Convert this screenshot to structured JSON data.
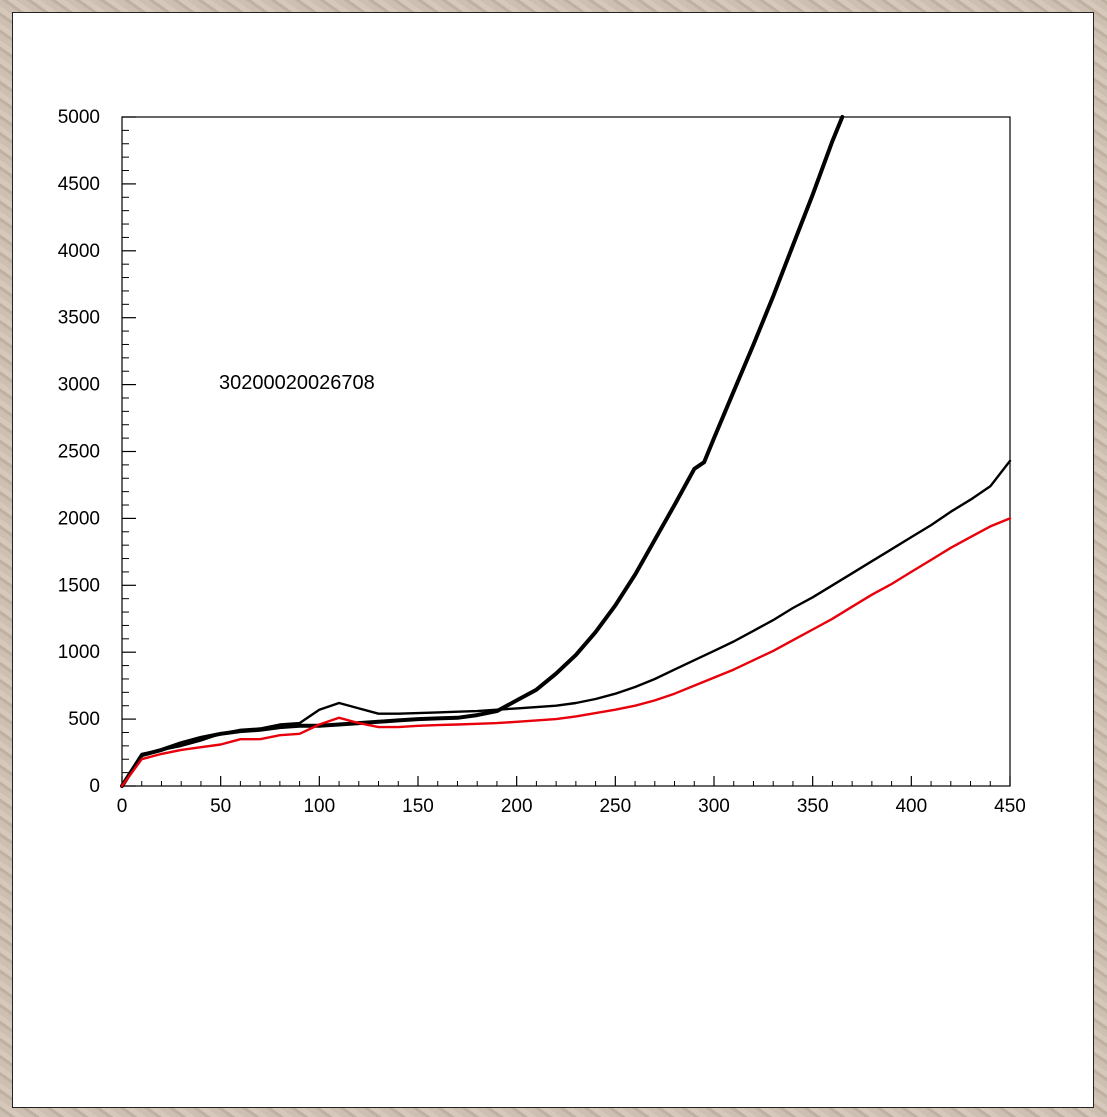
{
  "chart_data": {
    "type": "line",
    "title": "",
    "xlabel": "",
    "ylabel": "",
    "xlim": [
      0,
      450
    ],
    "ylim": [
      0,
      5000
    ],
    "grid": false,
    "xticks": [
      0,
      50,
      100,
      150,
      200,
      250,
      300,
      350,
      400,
      450
    ],
    "yticks": [
      0,
      500,
      1000,
      1500,
      2000,
      2500,
      3000,
      3500,
      4000,
      4500,
      5000
    ],
    "annotation": "30200020026708",
    "series": [
      {
        "color": "#000000",
        "style": "thick",
        "x": [
          0,
          10,
          20,
          30,
          40,
          50,
          60,
          70,
          80,
          90,
          100,
          110,
          120,
          130,
          140,
          150,
          160,
          170,
          180,
          190,
          200,
          210,
          220,
          230,
          240,
          250,
          260,
          270,
          280,
          290,
          295,
          300,
          310,
          320,
          330,
          340,
          350,
          360,
          365
        ],
        "y": [
          0,
          230,
          270,
          320,
          360,
          390,
          410,
          420,
          440,
          450,
          450,
          460,
          470,
          480,
          490,
          500,
          505,
          510,
          530,
          560,
          640,
          720,
          840,
          980,
          1150,
          1350,
          1580,
          1840,
          2100,
          2370,
          2420,
          2600,
          2950,
          3300,
          3660,
          4040,
          4420,
          4820,
          5000
        ]
      },
      {
        "color": "#000000",
        "style": "thin",
        "x": [
          0,
          10,
          20,
          30,
          40,
          50,
          60,
          70,
          80,
          90,
          100,
          110,
          120,
          130,
          140,
          150,
          160,
          170,
          180,
          190,
          200,
          210,
          220,
          230,
          240,
          250,
          260,
          270,
          280,
          290,
          300,
          310,
          320,
          330,
          340,
          350,
          360,
          370,
          380,
          390,
          400,
          410,
          420,
          430,
          440,
          450
        ],
        "y": [
          0,
          240,
          270,
          300,
          340,
          390,
          420,
          430,
          460,
          470,
          570,
          620,
          580,
          540,
          540,
          545,
          550,
          555,
          560,
          570,
          580,
          590,
          600,
          620,
          650,
          690,
          740,
          800,
          870,
          940,
          1010,
          1080,
          1160,
          1240,
          1330,
          1410,
          1500,
          1590,
          1680,
          1770,
          1860,
          1950,
          2050,
          2140,
          2240,
          2430
        ]
      },
      {
        "color": "#e8000b",
        "style": "thin",
        "x": [
          0,
          10,
          20,
          30,
          40,
          50,
          60,
          70,
          80,
          90,
          100,
          110,
          120,
          130,
          140,
          150,
          160,
          170,
          180,
          190,
          200,
          210,
          220,
          230,
          240,
          250,
          260,
          270,
          280,
          290,
          300,
          310,
          320,
          330,
          340,
          350,
          360,
          370,
          380,
          390,
          400,
          410,
          420,
          430,
          440,
          450
        ],
        "y": [
          0,
          200,
          240,
          270,
          290,
          310,
          350,
          350,
          380,
          390,
          460,
          510,
          470,
          440,
          440,
          450,
          455,
          460,
          465,
          470,
          480,
          490,
          500,
          520,
          545,
          570,
          600,
          640,
          690,
          750,
          810,
          870,
          940,
          1010,
          1090,
          1170,
          1250,
          1340,
          1430,
          1510,
          1600,
          1690,
          1780,
          1860,
          1940,
          2000
        ]
      }
    ]
  }
}
